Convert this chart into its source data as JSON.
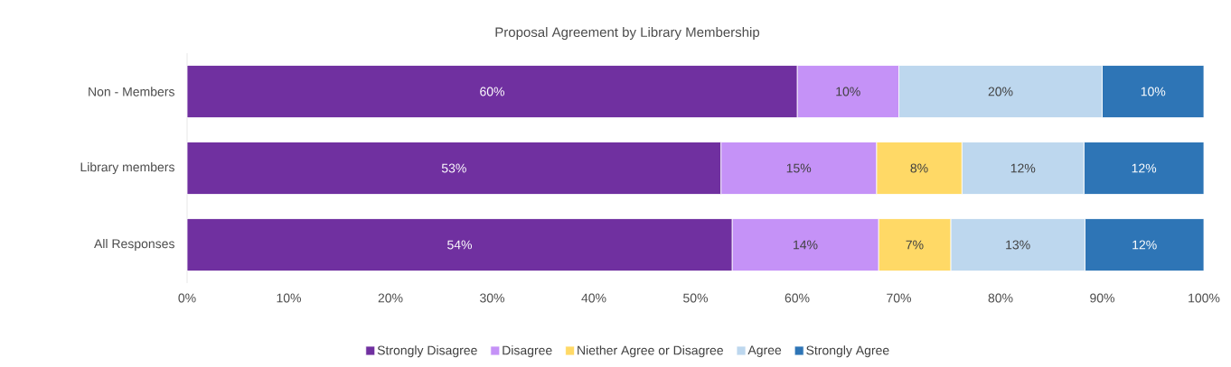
{
  "chart_data": {
    "type": "bar",
    "orientation": "horizontal",
    "stacked": true,
    "title": "Proposal Agreement by Library Membership",
    "categories": [
      "Non - Members",
      "Library members",
      "All Responses"
    ],
    "series": [
      {
        "name": "Strongly Disagree",
        "color": "#7030a0",
        "values": [
          60,
          52.5,
          53.6
        ],
        "value_labels": [
          "60%",
          "53%",
          "54%"
        ]
      },
      {
        "name": "Disagree",
        "color": "#c592f7",
        "values": [
          10,
          15.3,
          14.4
        ],
        "value_labels": [
          "10%",
          "15%",
          "14%"
        ]
      },
      {
        "name": "Niether Agree or Disagree",
        "color": "#ffd966",
        "values": [
          0,
          8.4,
          7.1
        ],
        "value_labels": [
          null,
          "8%",
          "7%"
        ]
      },
      {
        "name": "Agree",
        "color": "#bdd7ee",
        "values": [
          20,
          12.0,
          13.2
        ],
        "value_labels": [
          "20%",
          "12%",
          "13%"
        ]
      },
      {
        "name": "Strongly Agree",
        "color": "#2e75b6",
        "values": [
          10,
          11.8,
          11.7
        ],
        "value_labels": [
          "10%",
          "12%",
          "12%"
        ]
      }
    ],
    "xlim": [
      0,
      100
    ],
    "xticks": [
      {
        "value": 0,
        "label": "0%"
      },
      {
        "value": 10,
        "label": "10%"
      },
      {
        "value": 20,
        "label": "20%"
      },
      {
        "value": 30,
        "label": "30%"
      },
      {
        "value": 40,
        "label": "40%"
      },
      {
        "value": 50,
        "label": "50%"
      },
      {
        "value": 60,
        "label": "60%"
      },
      {
        "value": 70,
        "label": "70%"
      },
      {
        "value": 80,
        "label": "80%"
      },
      {
        "value": 90,
        "label": "90%"
      },
      {
        "value": 100,
        "label": "100%"
      }
    ],
    "grid": false,
    "legend": "bottom"
  }
}
